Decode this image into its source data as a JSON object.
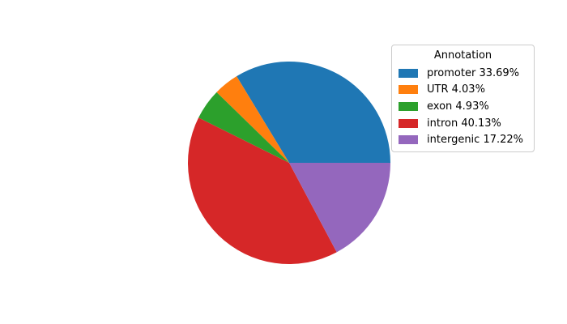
{
  "chart_data": {
    "type": "pie",
    "title": "",
    "background": "#ffffff",
    "text_color": "#000000",
    "start_angle_deg": 0,
    "direction": "counterclockwise",
    "legend": {
      "title": "Annotation",
      "position": "upper right",
      "border_color": "#cccccc",
      "background": "#ffffff"
    },
    "slices": [
      {
        "label": "promoter",
        "value": 33.69,
        "color": "#1f77b4",
        "legend": "promoter 33.69%"
      },
      {
        "label": "UTR",
        "value": 4.03,
        "color": "#ff7f0e",
        "legend": "UTR 4.03%"
      },
      {
        "label": "exon",
        "value": 4.93,
        "color": "#2ca02c",
        "legend": "exon 4.93%"
      },
      {
        "label": "intron",
        "value": 40.13,
        "color": "#d62728",
        "legend": "intron 40.13%"
      },
      {
        "label": "intergenic",
        "value": 17.22,
        "color": "#9467bd",
        "legend": "intergenic 17.22%"
      }
    ]
  }
}
